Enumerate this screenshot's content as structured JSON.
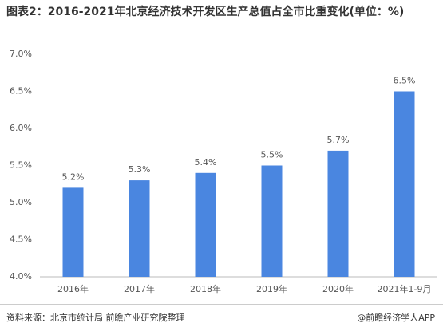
{
  "chart_data": {
    "type": "bar",
    "title": "图表2：2016-2021年北京经济技术开发区生产总值占全市比重变化(单位：%)",
    "categories": [
      "2016年",
      "2017年",
      "2018年",
      "2019年",
      "2020年",
      "2021年1-9月"
    ],
    "values": [
      5.2,
      5.3,
      5.4,
      5.5,
      5.7,
      6.5
    ],
    "value_labels": [
      "5.2%",
      "5.3%",
      "5.4%",
      "5.5%",
      "5.7%",
      "6.5%"
    ],
    "color": "#4a86e0",
    "ylim": [
      4,
      7
    ],
    "yticks": [
      {
        "value": 4,
        "label": "4.0%"
      },
      {
        "value": 4.5,
        "label": "4.5%"
      },
      {
        "value": 5,
        "label": "5.0%"
      },
      {
        "value": 5.5,
        "label": "5.5%"
      },
      {
        "value": 6,
        "label": "6.0%"
      },
      {
        "value": 6.5,
        "label": "6.5%"
      },
      {
        "value": 7,
        "label": "7.0%"
      }
    ],
    "grid": false,
    "source": "资料来源：北京市统计局 前瞻产业研究院整理",
    "credit": "@前瞻经济学人APP"
  }
}
